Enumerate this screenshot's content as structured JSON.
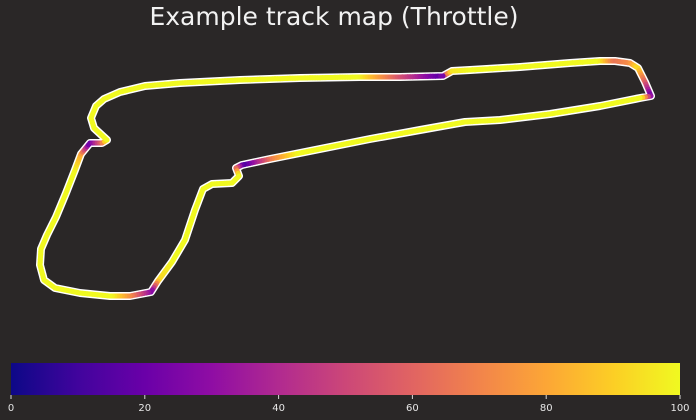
{
  "chart_data": {
    "type": "line",
    "title": "Example track map (Throttle)",
    "colorbar": {
      "min": 0,
      "max": 100,
      "ticks": [
        "0",
        "20",
        "40",
        "60",
        "80",
        "100"
      ],
      "colormap": "plasma"
    },
    "track": {
      "grid": false,
      "axes_visible": false,
      "outline_color": "#ffffff"
    }
  }
}
